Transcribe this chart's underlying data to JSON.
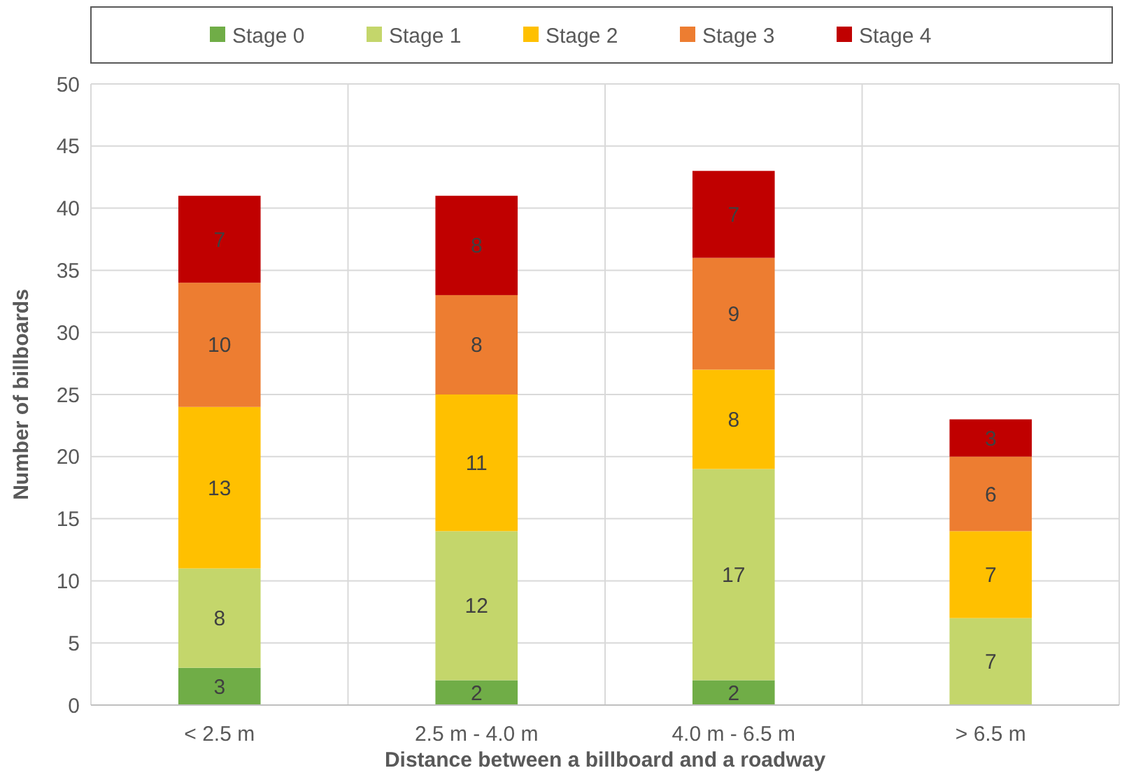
{
  "chart_data": {
    "type": "bar",
    "stacked": true,
    "xlabel": "Distance between a billboard and a roadway",
    "ylabel": "Number of billboards",
    "categories": [
      "< 2.5 m",
      "2.5 m - 4.0 m",
      "4.0 m - 6.5 m",
      "> 6.5 m"
    ],
    "series": [
      {
        "name": "Stage 0",
        "color": "#70ad47",
        "values": [
          3,
          2,
          2,
          null
        ]
      },
      {
        "name": "Stage 1",
        "color": "#c4d66b",
        "values": [
          8,
          12,
          17,
          7
        ]
      },
      {
        "name": "Stage 2",
        "color": "#ffc000",
        "values": [
          13,
          11,
          8,
          7
        ]
      },
      {
        "name": "Stage 3",
        "color": "#ed7d31",
        "values": [
          10,
          8,
          9,
          6
        ]
      },
      {
        "name": "Stage 4",
        "color": "#c00000",
        "values": [
          7,
          8,
          7,
          3
        ]
      }
    ],
    "ylim": [
      0,
      50
    ],
    "yticks": [
      0,
      5,
      10,
      15,
      20,
      25,
      30,
      35,
      40,
      45,
      50
    ],
    "grid": true,
    "legend": "top",
    "data_labels": true
  }
}
